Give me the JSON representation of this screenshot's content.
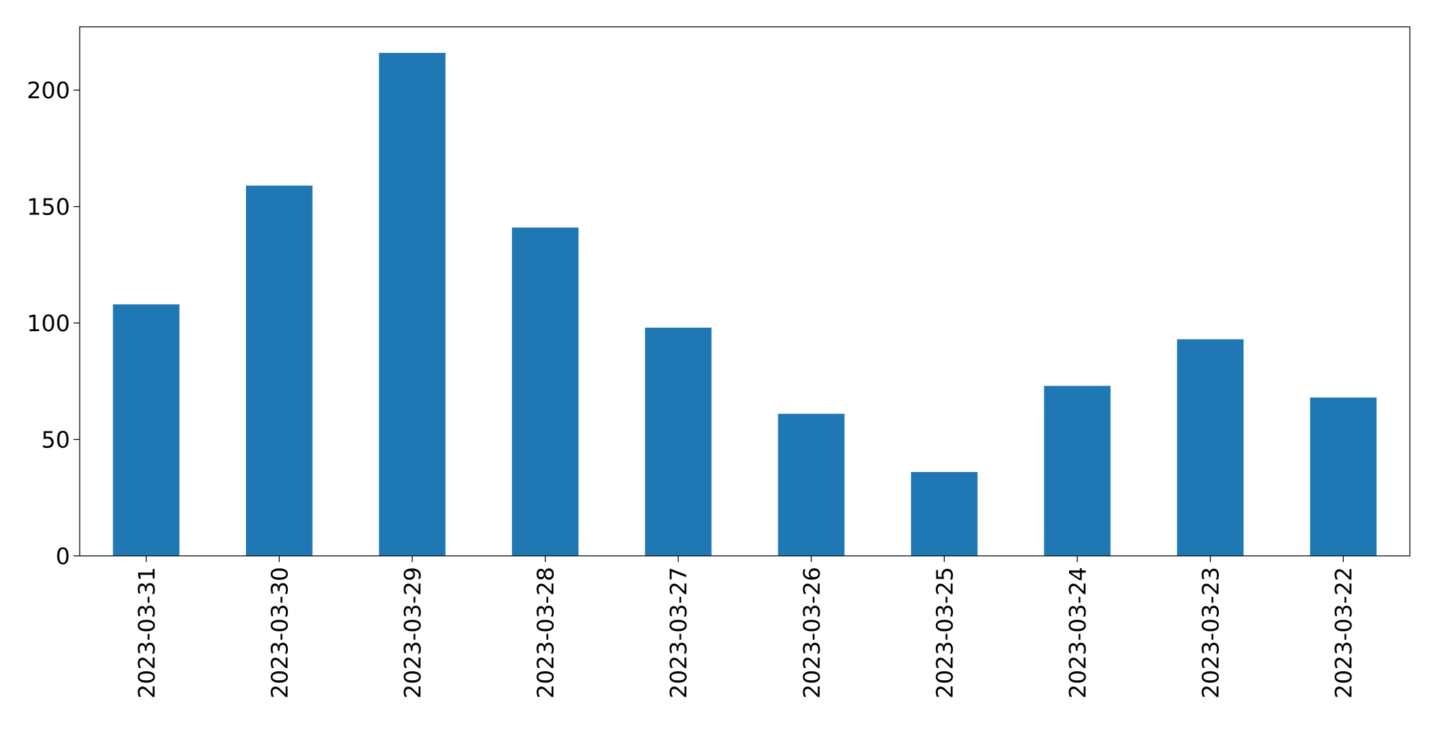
{
  "chart_data": {
    "type": "bar",
    "categories": [
      "2023-03-31",
      "2023-03-30",
      "2023-03-29",
      "2023-03-28",
      "2023-03-27",
      "2023-03-26",
      "2023-03-25",
      "2023-03-24",
      "2023-03-23",
      "2023-03-22"
    ],
    "values": [
      108,
      159,
      216,
      141,
      98,
      61,
      36,
      73,
      93,
      68
    ],
    "color": "#1f77b4",
    "ylim": [
      0,
      227.2
    ],
    "yticks": [
      0,
      50,
      100,
      150,
      200
    ],
    "grid": false
  }
}
